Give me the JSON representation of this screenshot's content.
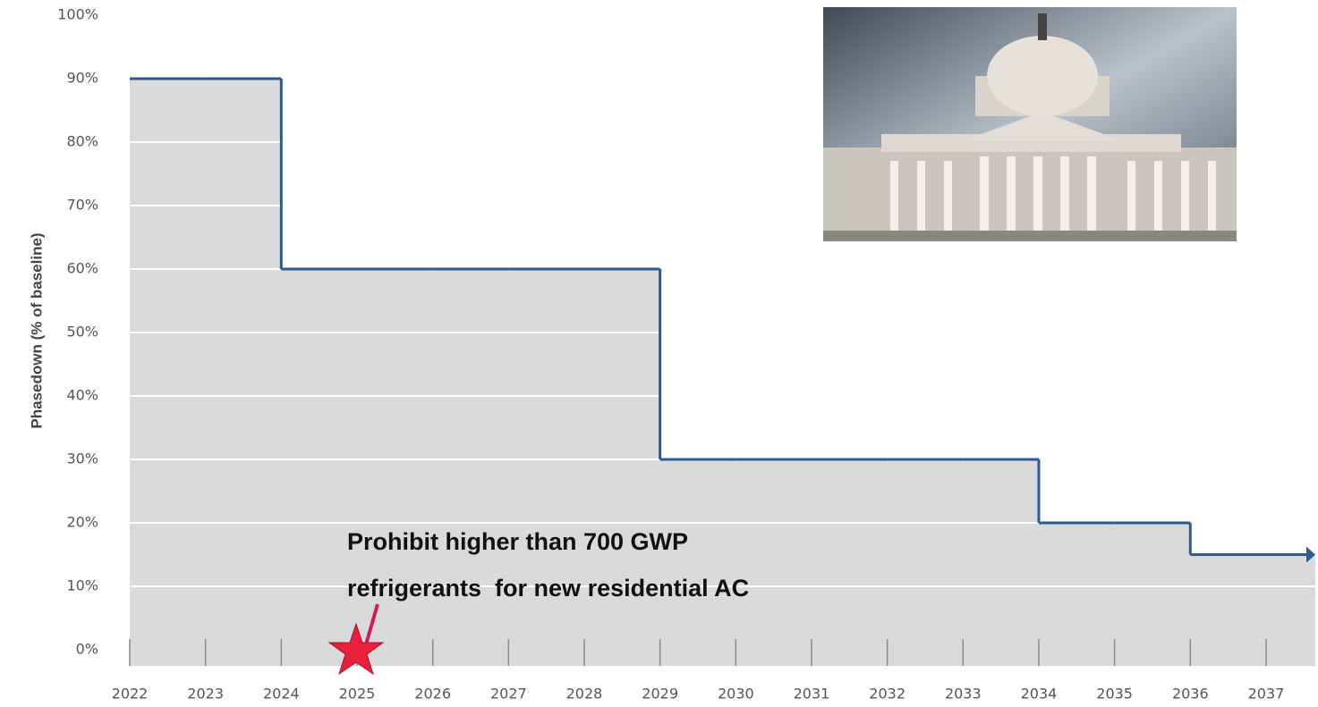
{
  "chart_data": {
    "type": "step",
    "y_label": "Phasedown (% of baseline)",
    "x": [
      2022,
      2023,
      2024,
      2025,
      2026,
      2027,
      2028,
      2029,
      2030,
      2031,
      2032,
      2033,
      2034,
      2035,
      2036,
      2037
    ],
    "values": [
      90,
      90,
      60,
      60,
      60,
      60,
      60,
      30,
      30,
      30,
      30,
      30,
      20,
      20,
      15,
      15
    ],
    "color": "#2e5b8c",
    "fill": "#d9dadb",
    "xlim": [
      2022,
      2037.65
    ],
    "ylim": [
      0,
      100
    ],
    "yticks": [
      {
        "value": 0,
        "label": "0%"
      },
      {
        "value": 10,
        "label": "10%"
      },
      {
        "value": 20,
        "label": "20%"
      },
      {
        "value": 30,
        "label": "30%"
      },
      {
        "value": 40,
        "label": "40%"
      },
      {
        "value": 50,
        "label": "50%"
      },
      {
        "value": 60,
        "label": "60%"
      },
      {
        "value": 70,
        "label": "70%"
      },
      {
        "value": 80,
        "label": "80%"
      },
      {
        "value": 90,
        "label": "90%"
      },
      {
        "value": 100,
        "label": "100%"
      }
    ],
    "grid": true,
    "annotation": [
      "Prohibit higher than 700 GWP",
      "refrigerants  for new residential AC"
    ]
  }
}
